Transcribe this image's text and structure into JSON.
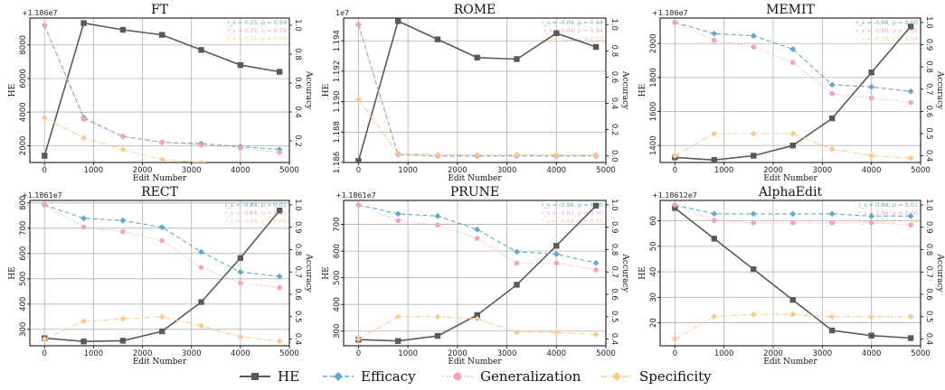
{
  "colors": {
    "he": "#595959",
    "efficacy": "#5fa8cf",
    "generalization": "#f5a3b5",
    "specificity": "#fcc98a"
  },
  "legend": [
    {
      "key": "he",
      "label": "HE"
    },
    {
      "key": "efficacy",
      "label": "Efficacy"
    },
    {
      "key": "generalization",
      "label": "Generalization"
    },
    {
      "key": "specificity",
      "label": "Specificity"
    }
  ],
  "chart_data": [
    {
      "type": "line",
      "title": "FT",
      "xlabel": "Edit Number",
      "ylabel": "HE",
      "ylabel_right": "Accuracy",
      "offset_label": "+1.186e7",
      "x": [
        0,
        800,
        1600,
        2400,
        3200,
        4000,
        4800
      ],
      "xlim": [
        -300,
        5000
      ],
      "xticks": [
        0,
        1000,
        2000,
        3000,
        4000,
        5000
      ],
      "ylim": [
        1000,
        9600
      ],
      "yticks": [
        2000,
        4000,
        6000,
        8000
      ],
      "ylim_right": [
        0.05,
        1.05
      ],
      "yticks_right": [
        "0.2",
        "0.4",
        "0.6",
        "0.8",
        "1.0"
      ],
      "he": [
        1400,
        9300,
        8900,
        8600,
        7700,
        6800,
        6400
      ],
      "efficacy": [
        1.0,
        0.36,
        0.23,
        0.19,
        0.18,
        0.16,
        0.14
      ],
      "generalization": [
        1.0,
        0.35,
        0.23,
        0.19,
        0.17,
        0.15,
        0.12
      ],
      "specificity": [
        0.36,
        0.22,
        0.14,
        0.07,
        0.05,
        0.03,
        0.02
      ],
      "corr": [
        "r_s = 0.25, p = 0.59",
        "r_s = 0.25, p = 0.59",
        "r_s = 0.21, p = 0.59"
      ]
    },
    {
      "type": "line",
      "title": "ROME",
      "xlabel": "Edit Number",
      "ylabel": "HE",
      "ylabel_right": "Accuracy",
      "offset_label": "1e7",
      "x": [
        0,
        800,
        1600,
        2400,
        3200,
        4000,
        4800
      ],
      "xlim": [
        -300,
        5000
      ],
      "xticks": [
        0,
        1000,
        2000,
        3000,
        4000,
        5000
      ],
      "ylim": [
        1.186,
        1.1955
      ],
      "yticks": [
        "1.186",
        "1.188",
        "1.190",
        "1.192",
        "1.194"
      ],
      "ylim_right": [
        -0.05,
        1.05
      ],
      "yticks_right": [
        "0.0",
        "0.2",
        "0.4",
        "0.6",
        "0.8",
        "1.0"
      ],
      "he": [
        1.1861,
        1.1953,
        1.1941,
        1.1929,
        1.1928,
        1.1945,
        1.1936
      ],
      "efficacy": [
        1.0,
        0.01,
        0.0,
        0.0,
        0.0,
        0.0,
        0.0
      ],
      "generalization": [
        1.0,
        0.01,
        0.0,
        0.0,
        0.0,
        0.0,
        0.0
      ],
      "specificity": [
        0.43,
        0.02,
        0.01,
        0.01,
        0.01,
        0.01,
        0.01
      ],
      "corr": [
        "r_s = -0.04, p = 0.94",
        "r_s = 0.04, p = 0.94",
        "r_s = -0.76, p = 0.05"
      ]
    },
    {
      "type": "line",
      "title": "MEMIT",
      "xlabel": "Edit Number",
      "ylabel": "HE",
      "ylabel_right": "Accuracy",
      "offset_label": "+1.186e7",
      "x": [
        0,
        800,
        1600,
        2400,
        3200,
        4000,
        4800
      ],
      "xlim": [
        -300,
        5000
      ],
      "xticks": [
        0,
        1000,
        2000,
        3000,
        4000,
        5000
      ],
      "ylim": [
        1300,
        2150
      ],
      "yticks": [
        1400,
        1600,
        1800,
        2000
      ],
      "ylim_right": [
        0.37,
        1.02
      ],
      "yticks_right": [
        "0.4",
        "0.5",
        "0.6",
        "0.7",
        "0.8",
        "0.9",
        "1.0"
      ],
      "he": [
        1330,
        1315,
        1340,
        1400,
        1560,
        1830,
        2100
      ],
      "efficacy": [
        1.0,
        0.95,
        0.94,
        0.88,
        0.72,
        0.71,
        0.69
      ],
      "generalization": [
        1.0,
        0.92,
        0.89,
        0.82,
        0.68,
        0.66,
        0.64
      ],
      "specificity": [
        0.4,
        0.5,
        0.5,
        0.5,
        0.43,
        0.4,
        0.39
      ],
      "corr": [
        "r_s = -0.96, p = 0.00",
        "r_s = -0.96, p = 0.00",
        "r_s = -0.79, p = 0.04"
      ]
    },
    {
      "type": "line",
      "title": "RECT",
      "xlabel": "Edit Number",
      "ylabel": "HE",
      "ylabel_right": "Accuracy",
      "offset_label": "+1.1861e7",
      "x": [
        0,
        800,
        1600,
        2400,
        3200,
        4000,
        4800
      ],
      "xlim": [
        -300,
        5000
      ],
      "xticks": [
        0,
        1000,
        2000,
        3000,
        4000,
        5000
      ],
      "ylim": [
        235,
        810
      ],
      "yticks": [
        300,
        400,
        500,
        600,
        700,
        800
      ],
      "ylim_right": [
        0.37,
        1.02
      ],
      "yticks_right": [
        "0.4",
        "0.5",
        "0.6",
        "0.7",
        "0.8",
        "0.9",
        "1.0"
      ],
      "he": [
        265,
        252,
        255,
        292,
        408,
        582,
        770
      ],
      "efficacy": [
        1.0,
        0.94,
        0.93,
        0.9,
        0.79,
        0.7,
        0.68
      ],
      "generalization": [
        1.0,
        0.9,
        0.88,
        0.84,
        0.72,
        0.65,
        0.63
      ],
      "specificity": [
        0.4,
        0.48,
        0.49,
        0.5,
        0.46,
        0.41,
        0.39
      ],
      "corr": [
        "r_s = -0.89, p = 0.01",
        "r_s = -0.89, p = 0.01",
        "r_s = -0.68, p = 0.09"
      ]
    },
    {
      "type": "line",
      "title": "PRUNE",
      "xlabel": "Edit Number",
      "ylabel": "HE",
      "ylabel_right": "Accuracy",
      "offset_label": "+1.1861e7",
      "x": [
        0,
        800,
        1600,
        2400,
        3200,
        4000,
        4800
      ],
      "xlim": [
        -300,
        5000
      ],
      "xticks": [
        0,
        1000,
        2000,
        3000,
        4000,
        5000
      ],
      "ylim": [
        245,
        790
      ],
      "yticks": [
        300,
        400,
        500,
        600,
        700
      ],
      "ylim_right": [
        0.37,
        1.02
      ],
      "yticks_right": [
        "0.4",
        "0.5",
        "0.6",
        "0.7",
        "0.8",
        "0.9",
        "1.0"
      ],
      "he": [
        268,
        263,
        282,
        360,
        474,
        620,
        770
      ],
      "efficacy": [
        1.0,
        0.96,
        0.95,
        0.89,
        0.79,
        0.78,
        0.74
      ],
      "generalization": [
        1.0,
        0.93,
        0.91,
        0.85,
        0.74,
        0.74,
        0.71
      ],
      "specificity": [
        0.4,
        0.5,
        0.5,
        0.49,
        0.43,
        0.43,
        0.42
      ],
      "corr": [
        "r_s = -0.96, p = 0.00",
        "r_s = -0.93, p = 0.00",
        "r_s = -0.89, p = 0.01"
      ]
    },
    {
      "type": "line",
      "title": "AlphaEdit",
      "xlabel": "Edit Number",
      "ylabel": "HE",
      "ylabel_right": "Accuracy",
      "offset_label": "+1.18612e7",
      "x": [
        0,
        800,
        1600,
        2400,
        3200,
        4000,
        4800
      ],
      "xlim": [
        -300,
        5000
      ],
      "xticks": [
        0,
        1000,
        2000,
        3000,
        4000,
        5000
      ],
      "ylim": [
        11,
        68
      ],
      "yticks": [
        20,
        30,
        40,
        50,
        60
      ],
      "ylim_right": [
        0.37,
        1.02
      ],
      "yticks_right": [
        "0.4",
        "0.5",
        "0.6",
        "0.7",
        "0.8",
        "0.9",
        "1.0"
      ],
      "he": [
        65,
        53,
        41,
        29,
        17,
        15,
        14
      ],
      "efficacy": [
        1.0,
        0.96,
        0.96,
        0.96,
        0.96,
        0.95,
        0.95
      ],
      "generalization": [
        1.0,
        0.93,
        0.92,
        0.92,
        0.92,
        0.92,
        0.91
      ],
      "specificity": [
        0.4,
        0.5,
        0.51,
        0.51,
        0.5,
        0.5,
        0.5
      ],
      "corr": [
        "r_s = 0.86, p = 0.01",
        "r_s = 0.96, p = 0.00",
        "r_s = 0.43, p = 0.34"
      ]
    }
  ]
}
